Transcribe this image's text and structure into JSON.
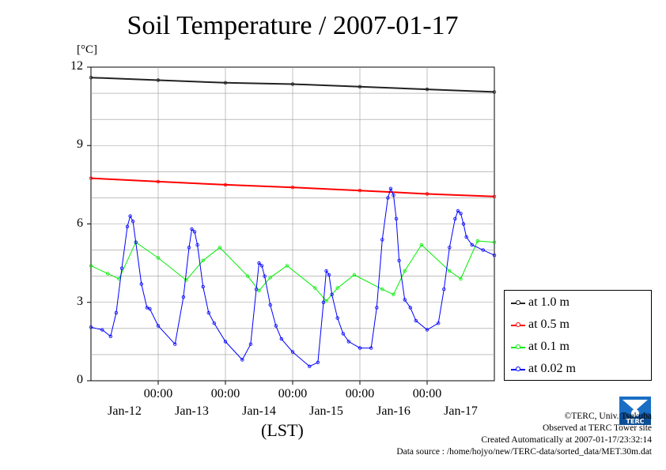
{
  "chart_data": {
    "type": "line",
    "title": "Soil Temperature / 2007-01-17",
    "ylabel_unit": "[°C]",
    "xlabel": "(LST)",
    "ylim": [
      0,
      12
    ],
    "yticks": [
      0,
      3,
      6,
      9,
      12
    ],
    "x_hours_range": [
      0,
      144
    ],
    "xtick_times": [
      "00:00",
      "00:00",
      "00:00",
      "00:00",
      "00:00"
    ],
    "xtick_hours": [
      24,
      48,
      72,
      96,
      120
    ],
    "date_labels": [
      "Jan-12",
      "Jan-13",
      "Jan-14",
      "Jan-15",
      "Jan-16",
      "Jan-17"
    ],
    "date_label_hours": [
      12,
      36,
      60,
      84,
      108,
      132
    ],
    "grid": true,
    "legend_position": "right",
    "series": [
      {
        "name": "at 1.0 m",
        "color": "#222222",
        "x": [
          0,
          24,
          48,
          72,
          96,
          120,
          144
        ],
        "y": [
          11.6,
          11.5,
          11.4,
          11.35,
          11.25,
          11.15,
          11.05
        ]
      },
      {
        "name": "at 0.5 m",
        "color": "#ff0000",
        "x": [
          0,
          24,
          48,
          72,
          96,
          120,
          144
        ],
        "y": [
          7.75,
          7.62,
          7.5,
          7.4,
          7.28,
          7.15,
          7.05
        ]
      },
      {
        "name": "at 0.1 m",
        "color": "#00ee00",
        "x": [
          0,
          6,
          10,
          16,
          24,
          34,
          40,
          46,
          56,
          60,
          64,
          70,
          80,
          84,
          88,
          94,
          104,
          108,
          112,
          118,
          128,
          132,
          138,
          144
        ],
        "y": [
          4.4,
          4.1,
          3.9,
          5.3,
          4.7,
          3.85,
          4.6,
          5.1,
          4.0,
          3.45,
          3.95,
          4.4,
          3.55,
          3.05,
          3.55,
          4.05,
          3.5,
          3.3,
          4.2,
          5.2,
          4.2,
          3.9,
          5.35,
          5.3
        ]
      },
      {
        "name": "at 0.02 m",
        "color": "#0000ff",
        "x": [
          0,
          4,
          7,
          9,
          11,
          13,
          14,
          15,
          16,
          18,
          20,
          21,
          24,
          30,
          33,
          35,
          36,
          37,
          38,
          40,
          42,
          44,
          48,
          54,
          57,
          59,
          60,
          61,
          62,
          64,
          66,
          68,
          72,
          78,
          81,
          83,
          84,
          85,
          86,
          88,
          90,
          92,
          96,
          100,
          102,
          104,
          106,
          107,
          108,
          109,
          110,
          112,
          114,
          116,
          120,
          124,
          126,
          128,
          130,
          131,
          132,
          133,
          134,
          136,
          140,
          144
        ],
        "y": [
          2.05,
          1.95,
          1.7,
          2.6,
          4.3,
          5.9,
          6.3,
          6.1,
          5.3,
          3.7,
          2.8,
          2.75,
          2.1,
          1.4,
          3.2,
          5.1,
          5.8,
          5.7,
          5.2,
          3.6,
          2.6,
          2.2,
          1.5,
          0.8,
          1.4,
          3.5,
          4.5,
          4.4,
          4.0,
          2.9,
          2.1,
          1.6,
          1.1,
          0.55,
          0.7,
          3.0,
          4.2,
          4.05,
          3.3,
          2.4,
          1.8,
          1.5,
          1.25,
          1.25,
          2.8,
          5.4,
          7.0,
          7.35,
          7.1,
          6.2,
          4.6,
          3.1,
          2.8,
          2.3,
          1.95,
          2.2,
          3.5,
          5.1,
          6.2,
          6.5,
          6.4,
          6.0,
          5.5,
          5.2,
          5.0,
          4.8
        ]
      }
    ]
  },
  "credits": {
    "copyright": "©TERC, Univ. Tsukuba",
    "observed": "Observed at TERC Tower site",
    "created": "Created Automatically at 2007-01-17/23:32:14",
    "source": "Data source : /home/hojyo/new/TERC-data/sorted_data/MET.30m.dat"
  },
  "logo": {
    "text": "TERC",
    "icon": "terc-logo-icon",
    "color": "#1a6fc4"
  }
}
